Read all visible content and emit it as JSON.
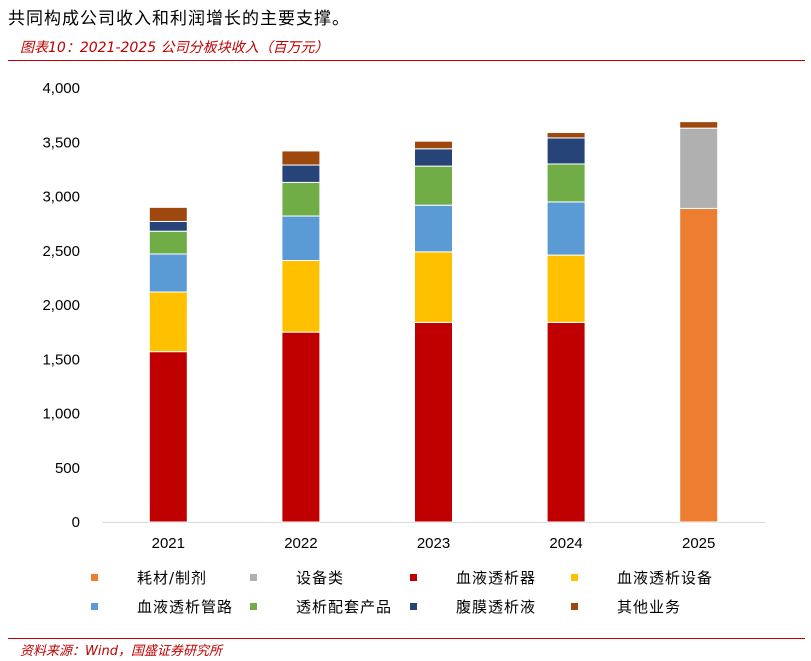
{
  "intro_text": "共同构成公司收入和利润增长的主要支撑。",
  "figure_title": "图表10：2021-2025 公司分板块收入（百万元）",
  "source_text": "资料来源：Wind，国盛证券研究所",
  "chart_data": {
    "type": "bar",
    "stacked": true,
    "categories": [
      "2021",
      "2022",
      "2023",
      "2024",
      "2025"
    ],
    "ylim": [
      0,
      4000
    ],
    "yticks": [
      0,
      500,
      1000,
      1500,
      2000,
      2500,
      3000,
      3500,
      4000
    ],
    "ytick_labels": [
      "0",
      "500",
      "1,000",
      "1,500",
      "2,000",
      "2,500",
      "3,000",
      "3,500",
      "4,000"
    ],
    "grid": false,
    "legend_position": "bottom",
    "series": [
      {
        "name": "耗材/制剂",
        "color": "#ed7d31",
        "values": [
          0,
          0,
          0,
          0,
          2890
        ]
      },
      {
        "name": "设备类",
        "color": "#b0b0b0",
        "values": [
          0,
          0,
          0,
          0,
          740
        ]
      },
      {
        "name": "血液透析器",
        "color": "#c00000",
        "values": [
          1570,
          1750,
          1840,
          1840,
          0
        ]
      },
      {
        "name": "血液透析设备",
        "color": "#ffc000",
        "values": [
          550,
          660,
          650,
          620,
          0
        ]
      },
      {
        "name": "血液透析管路",
        "color": "#5b9bd5",
        "values": [
          350,
          410,
          430,
          490,
          0
        ]
      },
      {
        "name": "透析配套产品",
        "color": "#70ad47",
        "values": [
          210,
          310,
          360,
          350,
          0
        ]
      },
      {
        "name": "腹膜透析液",
        "color": "#264478",
        "values": [
          90,
          160,
          160,
          240,
          0
        ]
      },
      {
        "name": "其他业务",
        "color": "#9e480e",
        "values": [
          130,
          130,
          70,
          50,
          60
        ]
      }
    ]
  }
}
